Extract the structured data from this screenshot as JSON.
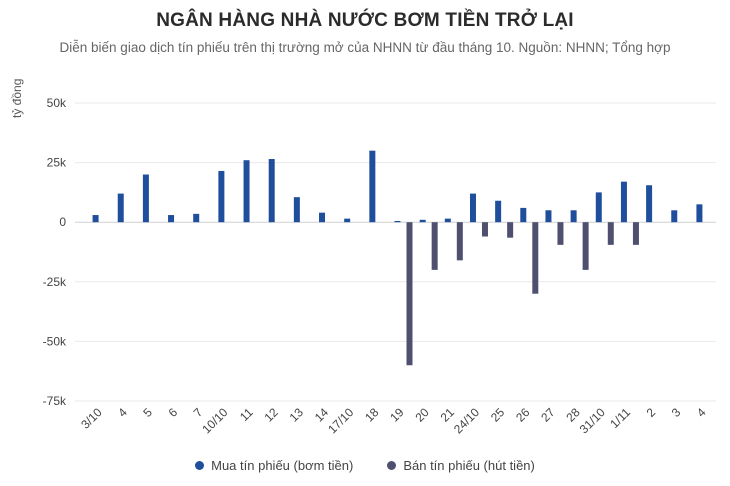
{
  "title": "NGÂN HÀNG NHÀ NƯỚC BƠM TIỀN TRỞ LẠI",
  "subtitle": "Diễn biến giao dịch tín phiếu trên thị trường mở của NHNN từ đầu tháng 10. Nguồn: NHNN; Tổng hợp",
  "chart_data": {
    "type": "bar",
    "title": "NGÂN HÀNG NHÀ NƯỚC BƠM TIỀN TRỞ LẠI",
    "subtitle": "Diễn biến giao dịch tín phiếu trên thị trường mở của NHNN từ đầu tháng 10. Nguồn: NHNN; Tổng hợp",
    "ylabel": "tỷ đồng",
    "xlabel": "",
    "ylim": [
      -75000,
      50000
    ],
    "yticks": [
      50000,
      25000,
      0,
      -25000,
      -50000,
      -75000
    ],
    "ytick_labels": [
      "50k",
      "25k",
      "0",
      "-25k",
      "-50k",
      "-75k"
    ],
    "grid": true,
    "legend_position": "bottom",
    "categories": [
      "3/10",
      "4",
      "5",
      "6",
      "7",
      "10/10",
      "11",
      "12",
      "13",
      "14",
      "17/10",
      "18",
      "19",
      "20",
      "21",
      "24/10",
      "25",
      "26",
      "27",
      "28",
      "31/10",
      "1/11",
      "2",
      "3",
      "4"
    ],
    "series": [
      {
        "name": "Mua tín phiếu (bơm tiền)",
        "color": "#1f4e9c",
        "values": [
          3000,
          12000,
          20000,
          3000,
          3500,
          21500,
          26000,
          26500,
          10500,
          4000,
          1500,
          30000,
          500,
          1000,
          1500,
          12000,
          9000,
          6000,
          5000,
          5000,
          12500,
          17000,
          15500,
          5000,
          7500
        ]
      },
      {
        "name": "Bán tín phiếu (hút tiền)",
        "color": "#4f5070",
        "values": [
          0,
          0,
          0,
          0,
          0,
          0,
          0,
          0,
          0,
          0,
          0,
          0,
          -60000,
          -20000,
          -16000,
          -6000,
          -6500,
          -30000,
          -9500,
          -20000,
          -9500,
          -9500,
          0,
          0,
          0
        ]
      }
    ]
  }
}
